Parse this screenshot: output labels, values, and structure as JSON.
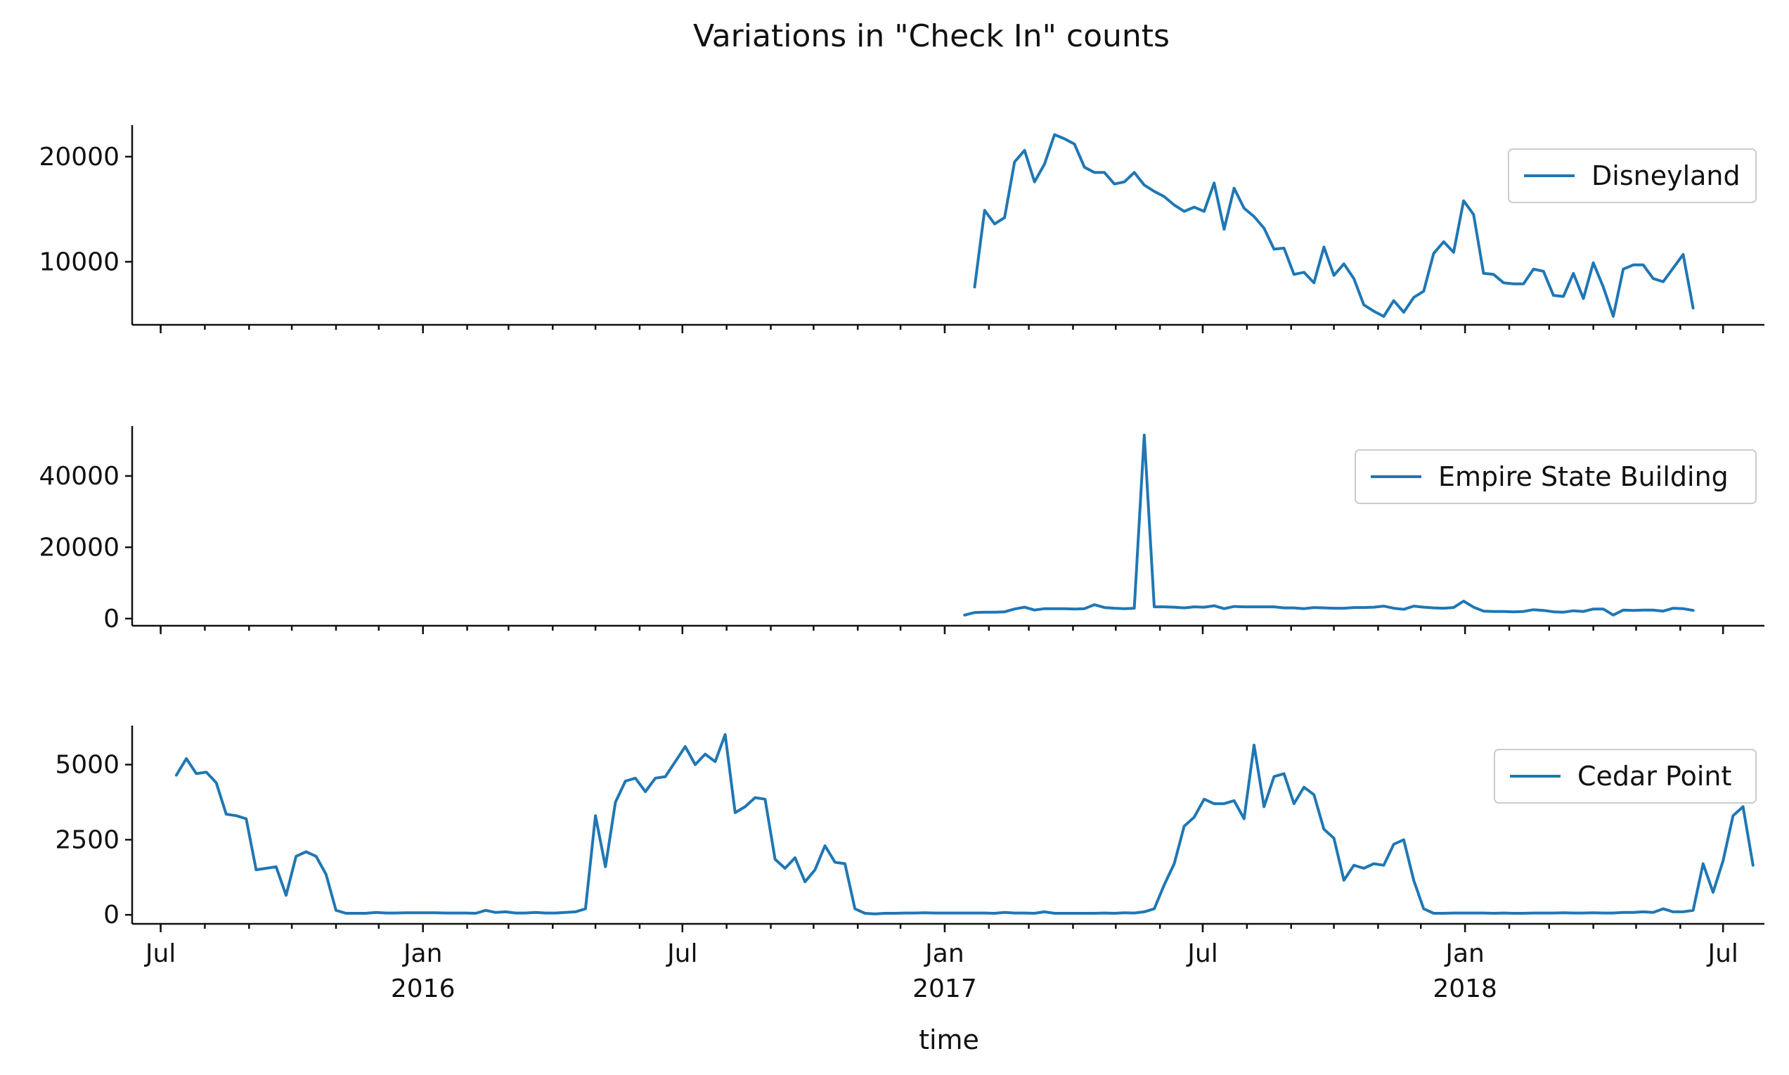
{
  "chart_data": {
    "type": "line",
    "title": "Variations in \"Check In\" counts",
    "xlabel": "time",
    "line_color": "#1f77b4",
    "x_range": [
      "2015-06-11",
      "2018-07-30"
    ],
    "x_major_ticks": [
      {
        "date": "2015-07-01",
        "label": "Jul",
        "sublabel": ""
      },
      {
        "date": "2016-01-01",
        "label": "Jan",
        "sublabel": "2016"
      },
      {
        "date": "2016-07-01",
        "label": "Jul",
        "sublabel": ""
      },
      {
        "date": "2017-01-01",
        "label": "Jan",
        "sublabel": "2017"
      },
      {
        "date": "2017-07-01",
        "label": "Jul",
        "sublabel": ""
      },
      {
        "date": "2018-01-01",
        "label": "Jan",
        "sublabel": "2018"
      },
      {
        "date": "2018-07-01",
        "label": "Jul",
        "sublabel": ""
      }
    ],
    "series": [
      {
        "name": "Disneyland",
        "ylim": [
          4000,
          23000
        ],
        "yticks": [
          10000,
          20000
        ],
        "legend_position": "upper-right",
        "start": "2017-01-22",
        "interval_days": 7,
        "values": [
          7600,
          14900,
          13600,
          14200,
          19500,
          20600,
          17600,
          19300,
          22100,
          21700,
          21200,
          19000,
          18500,
          18500,
          17400,
          17600,
          18500,
          17300,
          16700,
          16200,
          15400,
          14800,
          15200,
          14800,
          17500,
          13100,
          17000,
          15100,
          14300,
          13200,
          11200,
          11300,
          8800,
          9000,
          8000,
          11400,
          8700,
          9800,
          8400,
          5900,
          5300,
          4800,
          6300,
          5200,
          6600,
          7200,
          10800,
          11900,
          10900,
          15800,
          14500,
          8900,
          8800,
          8000,
          7900,
          7900,
          9300,
          9100,
          6800,
          6700,
          8900,
          6500,
          9900,
          7600,
          4800,
          9300,
          9700,
          9700,
          8400,
          8100,
          9400,
          10700,
          5600
        ]
      },
      {
        "name": "Empire State Building",
        "ylim": [
          -2000,
          54000
        ],
        "yticks": [
          0,
          20000,
          40000
        ],
        "legend_position": "upper-right",
        "start": "2017-01-15",
        "interval_days": 7,
        "values": [
          1000,
          1700,
          1800,
          1800,
          1900,
          2700,
          3200,
          2400,
          2800,
          2800,
          2800,
          2700,
          2800,
          3900,
          3100,
          2900,
          2800,
          2900,
          51500,
          3300,
          3300,
          3200,
          3000,
          3300,
          3200,
          3600,
          2800,
          3400,
          3300,
          3300,
          3300,
          3300,
          3000,
          3000,
          2800,
          3100,
          3000,
          2900,
          2900,
          3100,
          3100,
          3200,
          3500,
          2900,
          2600,
          3500,
          3200,
          3000,
          2900,
          3100,
          4900,
          3200,
          2100,
          2000,
          2000,
          1900,
          2000,
          2500,
          2300,
          1900,
          1800,
          2200,
          2000,
          2700,
          2700,
          1000,
          2400,
          2300,
          2400,
          2400,
          2100,
          2900,
          2800,
          2300
        ]
      },
      {
        "name": "Cedar Point",
        "ylim": [
          -300,
          6300
        ],
        "yticks": [
          0,
          2500,
          5000
        ],
        "legend_position": "upper-right",
        "start": "2015-07-12",
        "interval_days": 7,
        "values": [
          4650,
          5200,
          4700,
          4750,
          4400,
          3350,
          3300,
          3200,
          1500,
          1550,
          1600,
          650,
          1950,
          2100,
          1950,
          1350,
          150,
          50,
          50,
          50,
          80,
          60,
          60,
          70,
          70,
          70,
          70,
          60,
          60,
          60,
          50,
          150,
          80,
          100,
          60,
          60,
          80,
          60,
          60,
          80,
          100,
          200,
          3300,
          1600,
          3750,
          4450,
          4550,
          4100,
          4550,
          4600,
          5100,
          5600,
          5000,
          5350,
          5100,
          6000,
          3400,
          3600,
          3900,
          3850,
          1850,
          1550,
          1900,
          1100,
          1500,
          2300,
          1750,
          1700,
          200,
          50,
          30,
          50,
          50,
          60,
          60,
          70,
          60,
          60,
          60,
          60,
          60,
          60,
          50,
          80,
          60,
          60,
          50,
          100,
          50,
          50,
          50,
          50,
          50,
          60,
          50,
          70,
          60,
          100,
          200,
          1000,
          1700,
          2950,
          3250,
          3850,
          3700,
          3700,
          3800,
          3200,
          5650,
          3600,
          4600,
          4700,
          3700,
          4250,
          4000,
          2850,
          2550,
          1150,
          1650,
          1550,
          1700,
          1650,
          2350,
          2500,
          1150,
          200,
          50,
          50,
          60,
          60,
          60,
          60,
          50,
          60,
          50,
          50,
          60,
          60,
          60,
          70,
          60,
          60,
          70,
          60,
          60,
          80,
          80,
          100,
          80,
          200,
          100,
          100,
          150,
          1700,
          750,
          1800,
          3300,
          3600,
          1650
        ]
      }
    ]
  }
}
